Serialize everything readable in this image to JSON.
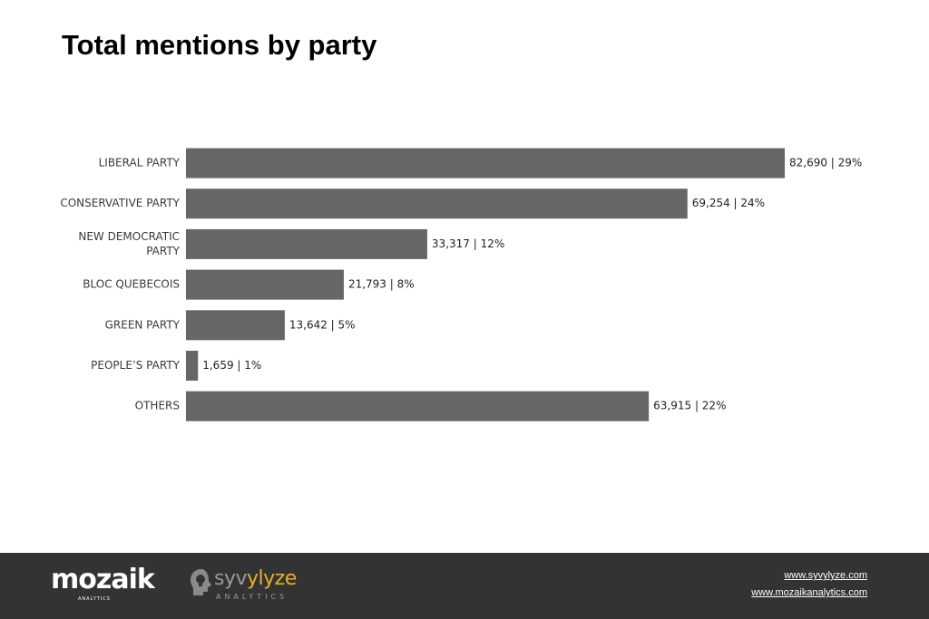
{
  "chart_data": {
    "type": "bar",
    "orientation": "horizontal",
    "title": "Total mentions by party",
    "categories": [
      "LIBERAL PARTY",
      "CONSERVATIVE PARTY",
      "NEW DEMOCRATIC PARTY",
      "BLOC QUEBECOIS",
      "GREEN PARTY",
      "PEOPLE'S PARTY",
      "OTHERS"
    ],
    "category_lines": [
      [
        "LIBERAL PARTY"
      ],
      [
        "CONSERVATIVE PARTY"
      ],
      [
        "NEW DEMOCRATIC",
        "PARTY"
      ],
      [
        "BLOC QUEBECOIS"
      ],
      [
        "GREEN PARTY"
      ],
      [
        "PEOPLE’S PARTY"
      ],
      [
        "OTHERS"
      ]
    ],
    "values": [
      82690,
      69254,
      33317,
      21793,
      13642,
      1659,
      63915
    ],
    "percents": [
      29,
      24,
      12,
      8,
      5,
      1,
      22
    ],
    "value_labels": [
      "82,690 | 29%",
      "69,254 | 24%",
      "33,317 | 12%",
      "21,793 | 8%",
      "13,642 | 5%",
      "1,659 | 1%",
      "63,915 | 22%"
    ],
    "bar_color": "#666666",
    "grid": false,
    "legend": "none"
  },
  "footer": {
    "brand_1": "mozaik",
    "brand_1_sub": "ANALYTICS",
    "brand_2_prefix": "syv",
    "brand_2_accent": "ylyze",
    "brand_2_sub": "ANALYTICS",
    "link_1": "www.syvylyze.com",
    "link_2": "www.mozaikanalytics.com",
    "background": "#333333",
    "accent": "#e8b02a"
  }
}
